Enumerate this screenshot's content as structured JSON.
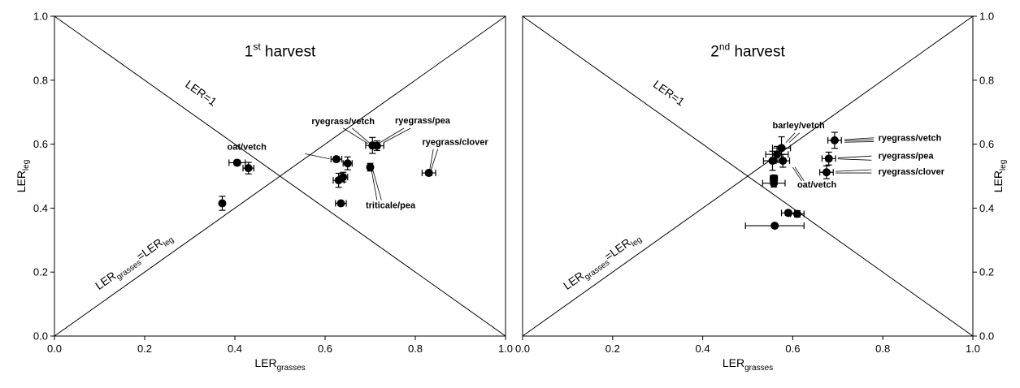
{
  "chart_data": [
    {
      "type": "scatter",
      "title": "1st harvest",
      "title_base": "1",
      "title_sup": "st",
      "title_rest": " harvest",
      "xlabel": "LERgrasses",
      "xlabel_base": "LER",
      "xlabel_sub": "grasses",
      "ylabel": "LERleg",
      "ylabel_base": "LER",
      "ylabel_sub": "leg",
      "ylabel_side": "left",
      "xlim": [
        0,
        1
      ],
      "ylim": [
        0,
        1
      ],
      "x_ticks": [
        "0.0",
        "0.2",
        "0.4",
        "0.6",
        "0.8",
        "1.0"
      ],
      "y_ticks": [
        "0.0",
        "0.2",
        "0.4",
        "0.6",
        "0.8",
        "1.0"
      ],
      "grid": false,
      "points": [
        {
          "x": 0.372,
          "y": 0.415,
          "xerr": 0.005,
          "yerr": 0.022
        },
        {
          "x": 0.405,
          "y": 0.542,
          "xerr": 0.018,
          "yerr": 0.008
        },
        {
          "x": 0.43,
          "y": 0.525,
          "xerr": 0.012,
          "yerr": 0.018
        },
        {
          "x": 0.625,
          "y": 0.553,
          "xerr": 0.012,
          "yerr": 0.008
        },
        {
          "x": 0.65,
          "y": 0.54,
          "xerr": 0.01,
          "yerr": 0.02
        },
        {
          "x": 0.63,
          "y": 0.487,
          "xerr": 0.012,
          "yerr": 0.022
        },
        {
          "x": 0.64,
          "y": 0.497,
          "xerr": 0.01,
          "yerr": 0.015
        },
        {
          "x": 0.635,
          "y": 0.415,
          "xerr": 0.012,
          "yerr": 0.005
        },
        {
          "x": 0.7,
          "y": 0.528,
          "xerr": 0.005,
          "yerr": 0.012
        },
        {
          "x": 0.705,
          "y": 0.596,
          "xerr": 0.015,
          "yerr": 0.025
        },
        {
          "x": 0.715,
          "y": 0.595,
          "xerr": 0.015,
          "yerr": 0.015
        },
        {
          "x": 0.83,
          "y": 0.51,
          "xerr": 0.015,
          "yerr": 0.008
        }
      ],
      "diagonal_labels": [
        "LER=1",
        "LERgrasses=LERleg"
      ],
      "annotations": [
        {
          "text": "oat/vetch",
          "tx": 0.47,
          "ty": 0.583,
          "anchor": "end",
          "lines": [
            [
              0.555,
              0.57,
              0.61,
              0.554
            ]
          ]
        },
        {
          "text": "ryegrass/vetch",
          "tx": 0.57,
          "ty": 0.662,
          "anchor": "start",
          "lines": [
            [
              0.64,
              0.65,
              0.695,
              0.602
            ],
            [
              0.66,
              0.65,
              0.7,
              0.602
            ]
          ]
        },
        {
          "text": "ryegrass/pea",
          "tx": 0.755,
          "ty": 0.665,
          "anchor": "start",
          "lines": [
            [
              0.775,
              0.65,
              0.722,
              0.605
            ],
            [
              0.79,
              0.65,
              0.73,
              0.605
            ]
          ]
        },
        {
          "text": "ryegrass/clover",
          "tx": 0.815,
          "ty": 0.598,
          "anchor": "start",
          "lines": [
            [
              0.84,
              0.585,
              0.832,
              0.52
            ],
            [
              0.85,
              0.585,
              0.835,
              0.52
            ]
          ]
        },
        {
          "text": "triticale/pea",
          "tx": 0.69,
          "ty": 0.4,
          "anchor": "start",
          "lines": [
            [
              0.715,
              0.425,
              0.703,
              0.518
            ],
            [
              0.725,
              0.425,
              0.706,
              0.518
            ]
          ]
        }
      ]
    },
    {
      "type": "scatter",
      "title": "2nd harvest",
      "title_base": "2",
      "title_sup": "nd",
      "title_rest": " harvest",
      "xlabel": "LERgrasses",
      "xlabel_base": "LER",
      "xlabel_sub": "grasses",
      "ylabel": "LERleg",
      "ylabel_base": "LER",
      "ylabel_sub": "leg",
      "ylabel_side": "right",
      "xlim": [
        0,
        1
      ],
      "ylim": [
        0,
        1
      ],
      "x_ticks": [
        "0.0",
        "0.2",
        "0.4",
        "0.6",
        "0.8",
        "1.0"
      ],
      "y_ticks": [
        "0.0",
        "0.2",
        "0.4",
        "0.6",
        "0.8",
        "1.0"
      ],
      "grid": false,
      "points": [
        {
          "x": 0.555,
          "y": 0.548,
          "xerr": 0.02,
          "yerr": 0.03
        },
        {
          "x": 0.565,
          "y": 0.568,
          "xerr": 0.025,
          "yerr": 0.025
        },
        {
          "x": 0.575,
          "y": 0.588,
          "xerr": 0.02,
          "yerr": 0.035
        },
        {
          "x": 0.578,
          "y": 0.548,
          "xerr": 0.015,
          "yerr": 0.02
        },
        {
          "x": 0.558,
          "y": 0.493,
          "xerr": 0.008,
          "yerr": 0.01
        },
        {
          "x": 0.558,
          "y": 0.478,
          "xerr": 0.025,
          "yerr": 0.012
        },
        {
          "x": 0.59,
          "y": 0.385,
          "xerr": 0.015,
          "yerr": 0.008
        },
        {
          "x": 0.61,
          "y": 0.382,
          "xerr": 0.015,
          "yerr": 0.01
        },
        {
          "x": 0.56,
          "y": 0.345,
          "xerr": 0.065,
          "yerr": 0.005
        },
        {
          "x": 0.693,
          "y": 0.612,
          "xerr": 0.015,
          "yerr": 0.025
        },
        {
          "x": 0.68,
          "y": 0.555,
          "xerr": 0.015,
          "yerr": 0.02
        },
        {
          "x": 0.675,
          "y": 0.512,
          "xerr": 0.015,
          "yerr": 0.02
        }
      ],
      "diagonal_labels": [
        "LER=1",
        "LERgrasses=LERleg"
      ],
      "annotations": [
        {
          "text": "barley/vetch",
          "tx": 0.555,
          "ty": 0.65,
          "anchor": "start",
          "lines": [
            [
              0.605,
              0.635,
              0.585,
              0.605
            ],
            [
              0.615,
              0.635,
              0.592,
              0.605
            ]
          ]
        },
        {
          "text": "oat/vetch",
          "tx": 0.61,
          "ty": 0.465,
          "anchor": "start",
          "lines": [
            [
              0.62,
              0.485,
              0.6,
              0.528
            ],
            [
              0.625,
              0.485,
              0.605,
              0.528
            ]
          ]
        },
        {
          "text": "ryegrass/vetch",
          "tx": 0.79,
          "ty": 0.61,
          "anchor": "start",
          "lines": [
            [
              0.78,
              0.62,
              0.715,
              0.614
            ],
            [
              0.78,
              0.614,
              0.715,
              0.61
            ],
            [
              0.78,
              0.608,
              0.715,
              0.606
            ]
          ]
        },
        {
          "text": "ryegrass/pea",
          "tx": 0.79,
          "ty": 0.555,
          "anchor": "start",
          "lines": [
            [
              0.775,
              0.563,
              0.7,
              0.557
            ],
            [
              0.775,
              0.55,
              0.7,
              0.554
            ]
          ]
        },
        {
          "text": "ryegrass/clover",
          "tx": 0.79,
          "ty": 0.505,
          "anchor": "start",
          "lines": [
            [
              0.775,
              0.52,
              0.695,
              0.515
            ],
            [
              0.775,
              0.51,
              0.695,
              0.51
            ]
          ]
        }
      ]
    }
  ]
}
